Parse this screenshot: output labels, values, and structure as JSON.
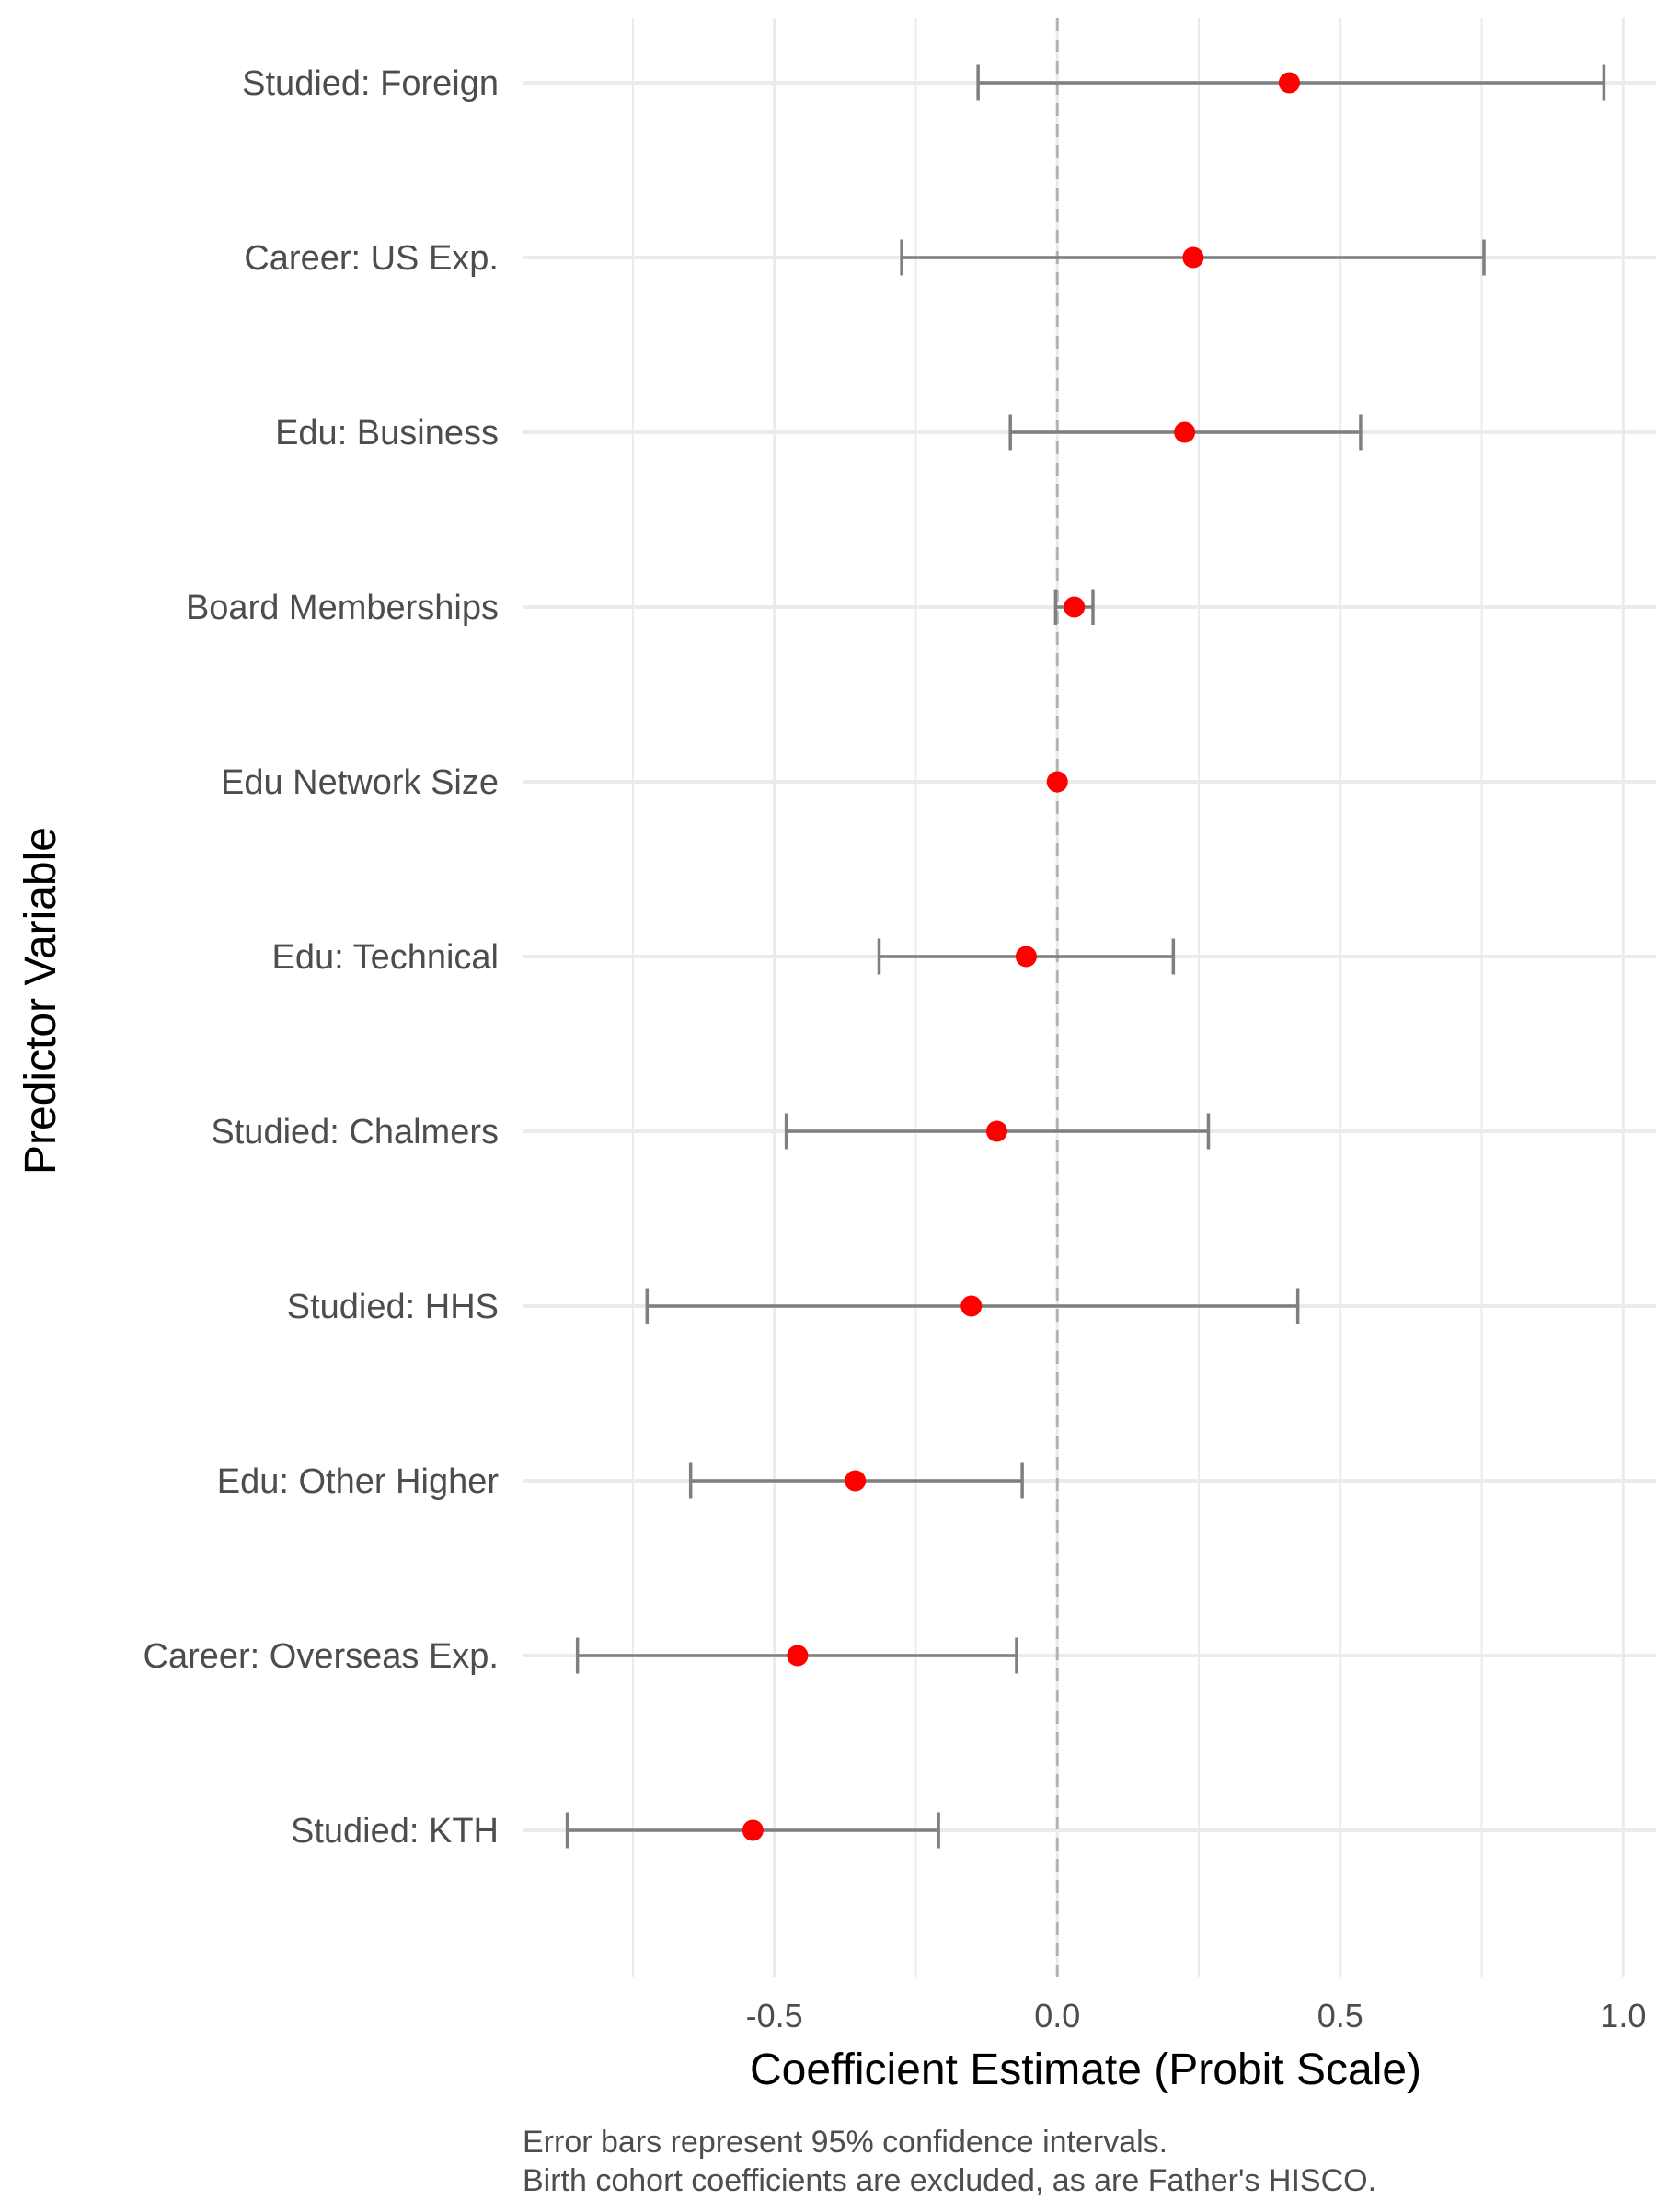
{
  "chart_data": {
    "type": "scatter",
    "subtype": "coefficient-plot",
    "title": "",
    "xlabel": "Coefficient Estimate (Probit Scale)",
    "ylabel": "Predictor Variable",
    "xlim": [
      -0.945,
      1.058
    ],
    "xticks": [
      -0.5,
      0.0,
      0.5,
      1.0
    ],
    "xtick_labels": [
      "-0.5",
      "0.0",
      "0.5",
      "1.0"
    ],
    "reference_line": {
      "x": 0,
      "style": "dashed"
    },
    "grid": true,
    "legend": "none",
    "caption": [
      "Error bars represent 95% confidence intervals.",
      "Birth cohort coefficients are excluded, as are Father's HISCO."
    ],
    "colors": {
      "point": "#ff0000",
      "errorbar": "#7f7f7f",
      "grid": "#ebebeb",
      "refline": "#b3b3b3"
    },
    "categories": [
      "Studied: Foreign",
      "Career: US Exp.",
      "Edu: Business",
      "Board Memberships",
      "Edu Network Size",
      "Edu: Technical",
      "Studied: Chalmers",
      "Studied: HHS",
      "Edu: Other Higher",
      "Career: Overseas Exp.",
      "Studied: KTH"
    ],
    "estimates": [
      0.41,
      0.24,
      0.225,
      0.03,
      0.0,
      -0.055,
      -0.107,
      -0.152,
      -0.357,
      -0.459,
      -0.538
    ],
    "ci_low": [
      -0.14,
      -0.275,
      -0.083,
      -0.003,
      null,
      -0.315,
      -0.479,
      -0.725,
      -0.648,
      -0.848,
      -0.866
    ],
    "ci_high": [
      0.966,
      0.754,
      0.536,
      0.063,
      null,
      0.205,
      0.267,
      0.425,
      -0.062,
      -0.072,
      -0.21
    ]
  }
}
